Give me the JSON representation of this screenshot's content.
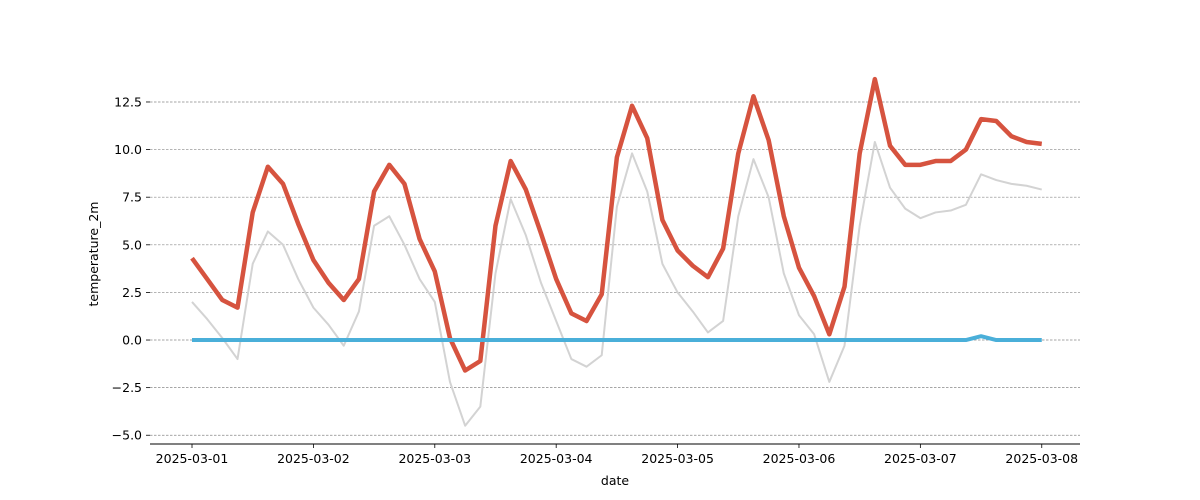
{
  "chart_data": {
    "type": "line",
    "xlabel": "date",
    "ylabel": "temperature_2m",
    "x": [
      0,
      0.125,
      0.25,
      0.375,
      0.5,
      0.625,
      0.75,
      0.875,
      1,
      1.125,
      1.25,
      1.375,
      1.5,
      1.625,
      1.75,
      1.875,
      2,
      2.125,
      2.25,
      2.375,
      2.5,
      2.625,
      2.75,
      2.875,
      3,
      3.125,
      3.25,
      3.375,
      3.5,
      3.625,
      3.75,
      3.875,
      4,
      4.125,
      4.25,
      4.375,
      4.5,
      4.625,
      4.75,
      4.875,
      5,
      5.125,
      5.25,
      5.375,
      5.5,
      5.625,
      5.75,
      5.875,
      6,
      6.125,
      6.25,
      6.375,
      6.5,
      6.625,
      6.75,
      6.875,
      7
    ],
    "series": [
      {
        "color": "#d3d3d3",
        "width": 2,
        "values": [
          2.0,
          1.1,
          0.1,
          -1.0,
          4.0,
          5.7,
          5.0,
          3.2,
          1.7,
          0.8,
          -0.3,
          1.5,
          6.0,
          6.5,
          5.0,
          3.2,
          2.0,
          -2.2,
          -4.5,
          -3.5,
          3.5,
          7.4,
          5.5,
          3.0,
          1.0,
          -1.0,
          -1.4,
          -0.8,
          7.0,
          9.8,
          7.8,
          4.0,
          2.5,
          1.5,
          0.4,
          1.0,
          6.5,
          9.5,
          7.5,
          3.5,
          1.3,
          0.3,
          -2.2,
          -0.3,
          6.0,
          10.4,
          8.0,
          6.9,
          6.4,
          6.7,
          6.8,
          7.1,
          8.7,
          8.4,
          8.2,
          8.1,
          7.9
        ]
      },
      {
        "color": "#d6533f",
        "width": 4.5,
        "values": [
          4.3,
          3.2,
          2.1,
          1.7,
          6.7,
          9.1,
          8.2,
          6.1,
          4.2,
          3.0,
          2.1,
          3.2,
          7.8,
          9.2,
          8.2,
          5.3,
          3.6,
          0.1,
          -1.6,
          -1.1,
          6.0,
          9.4,
          7.9,
          5.6,
          3.2,
          1.4,
          1.0,
          2.4,
          9.6,
          12.3,
          10.6,
          6.3,
          4.7,
          3.9,
          3.3,
          4.8,
          9.8,
          12.8,
          10.5,
          6.5,
          3.8,
          2.3,
          0.3,
          2.8,
          9.8,
          13.7,
          10.2,
          9.2,
          9.2,
          9.4,
          9.4,
          10.0,
          11.6,
          11.5,
          10.7,
          10.4,
          10.3
        ]
      },
      {
        "color": "#4aafd9",
        "width": 4,
        "values": [
          0,
          0,
          0,
          0,
          0,
          0,
          0,
          0,
          0,
          0,
          0,
          0,
          0,
          0,
          0,
          0,
          0,
          0,
          0,
          0,
          0,
          0,
          0,
          0,
          0,
          0,
          0,
          0,
          0,
          0,
          0,
          0,
          0,
          0,
          0,
          0,
          0,
          0,
          0,
          0,
          0,
          0,
          0,
          0,
          0,
          0,
          0,
          0,
          0,
          0,
          0,
          0,
          0.2,
          0,
          0,
          0,
          0
        ]
      }
    ],
    "xlim": [
      -0.346,
      7.315
    ],
    "xticks": [
      {
        "value": 0,
        "label": "2025-03-01"
      },
      {
        "value": 1,
        "label": "2025-03-02"
      },
      {
        "value": 2,
        "label": "2025-03-03"
      },
      {
        "value": 3,
        "label": "2025-03-04"
      },
      {
        "value": 4,
        "label": "2025-03-05"
      },
      {
        "value": 5,
        "label": "2025-03-06"
      },
      {
        "value": 6,
        "label": "2025-03-07"
      },
      {
        "value": 7,
        "label": "2025-03-08"
      }
    ],
    "ylim": [
      -5.46,
      14.3
    ],
    "yticks": [
      {
        "value": -5,
        "label": "−5.0"
      },
      {
        "value": -2.5,
        "label": "−2.5"
      },
      {
        "value": 0,
        "label": "0.0"
      },
      2.5,
      {
        "value": 5,
        "label": "5.0"
      },
      7.5,
      {
        "value": 10,
        "label": "10.0"
      },
      12.5
    ],
    "grid": true
  }
}
